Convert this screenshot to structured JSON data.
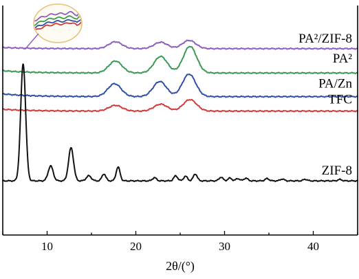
{
  "chart_data": {
    "type": "line",
    "xlabel": "2θ/(°)",
    "xlim": [
      5,
      45
    ],
    "x_ticks": [
      10,
      20,
      30,
      40
    ],
    "y_ticks": [],
    "grid": false,
    "legend": "labels at right end of each trace",
    "inset": "magnified view of the left portion of the PA²/ZIF-8, PA², PA/Zn and TFC traces, with pointer line to the PA²/ZIF-8 trace",
    "series": [
      {
        "name": "PA²/ZIF-8",
        "label_sup": "2",
        "color": "#8e5fbf",
        "baseline": 0.812,
        "peaks": [
          [
            17.7,
            0.03
          ],
          [
            22.8,
            0.028
          ],
          [
            26.0,
            0.036
          ]
        ],
        "tail": 0.005
      },
      {
        "name": "PA²",
        "label_sup": "2",
        "color": "#3a9a52",
        "baseline": 0.706,
        "peaks": [
          [
            17.7,
            0.052
          ],
          [
            22.8,
            0.072
          ],
          [
            26.1,
            0.116
          ]
        ],
        "tail": 0.01
      },
      {
        "name": "PA/Zn",
        "color": "#2f4fa6",
        "baseline": 0.603,
        "peaks": [
          [
            17.6,
            0.056
          ],
          [
            22.7,
            0.066
          ],
          [
            26.0,
            0.098
          ]
        ],
        "tail": 0.012
      },
      {
        "name": "TFC",
        "color": "#d23a3a",
        "baseline": 0.54,
        "peaks": [
          [
            17.7,
            0.025
          ],
          [
            22.8,
            0.03
          ],
          [
            26.1,
            0.05
          ]
        ],
        "tail": 0.008
      },
      {
        "name": "ZIF-8",
        "color": "#111111",
        "baseline": 0.236,
        "peaks": [
          [
            7.3,
            0.51
          ],
          [
            10.4,
            0.065
          ],
          [
            12.7,
            0.144
          ],
          [
            14.7,
            0.022
          ],
          [
            16.4,
            0.03
          ],
          [
            18.0,
            0.06
          ],
          [
            22.1,
            0.014
          ],
          [
            24.5,
            0.022
          ],
          [
            25.6,
            0.02
          ],
          [
            26.7,
            0.03
          ],
          [
            29.6,
            0.016
          ],
          [
            30.6,
            0.012
          ],
          [
            31.5,
            0.01
          ],
          [
            32.4,
            0.012
          ],
          [
            34.8,
            0.01
          ],
          [
            36.5,
            0.008
          ],
          [
            39.1,
            0.007
          ],
          [
            43.0,
            0.006
          ]
        ],
        "tail": 0
      }
    ]
  }
}
